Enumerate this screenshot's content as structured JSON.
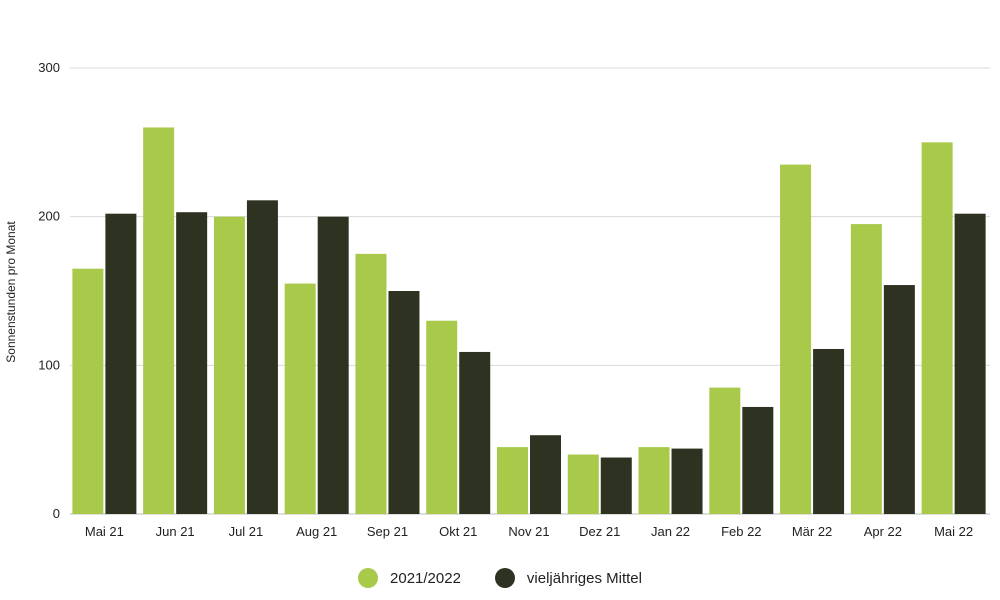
{
  "chart_data": {
    "type": "bar",
    "categories": [
      "Mai 21",
      "Jun 21",
      "Jul 21",
      "Aug 21",
      "Sep 21",
      "Okt 21",
      "Nov 21",
      "Dez 21",
      "Jan 22",
      "Feb 22",
      "Mär 22",
      "Apr 22",
      "Mai 22"
    ],
    "series": [
      {
        "name": "2021/2022",
        "color": "#a8c94a",
        "values": [
          165,
          260,
          200,
          155,
          175,
          130,
          45,
          40,
          45,
          85,
          235,
          195,
          250
        ]
      },
      {
        "name": "vieljähriges Mittel",
        "color": "#2d3320",
        "values": [
          202,
          203,
          211,
          200,
          150,
          109,
          53,
          38,
          44,
          72,
          111,
          154,
          202
        ]
      }
    ],
    "ylabel": "Sonnenstunden pro Monat",
    "ylim": [
      0,
      300
    ],
    "yticks": [
      0,
      100,
      200,
      300
    ],
    "grid": true,
    "legend_position": "bottom"
  }
}
